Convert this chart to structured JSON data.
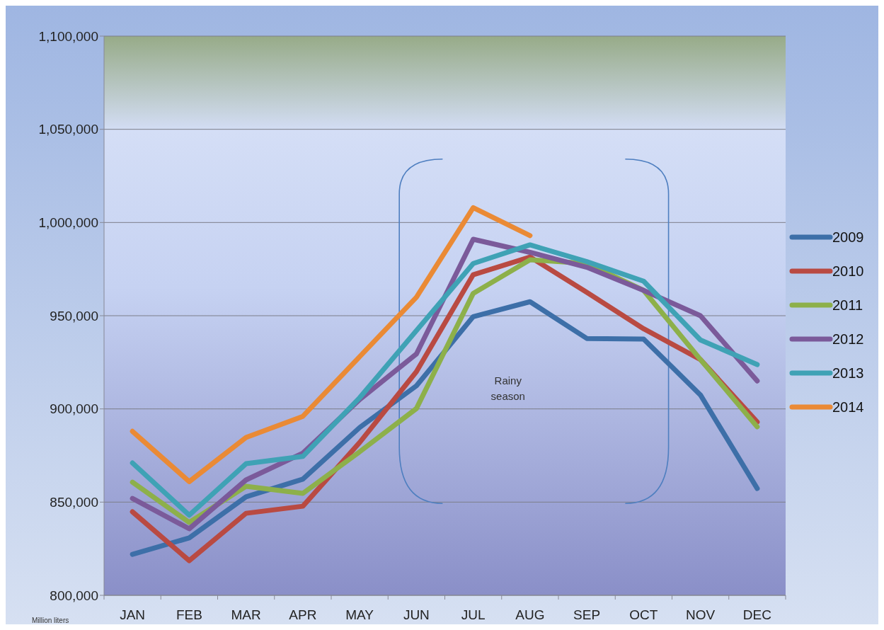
{
  "chart_data": {
    "type": "line",
    "categories": [
      "JAN",
      "FEB",
      "MAR",
      "APR",
      "MAY",
      "JUN",
      "JUL",
      "AUG",
      "SEP",
      "OCT",
      "NOV",
      "DEC"
    ],
    "series": [
      {
        "name": "2009",
        "color": "#3d6fa8",
        "values": [
          822000,
          830800,
          852800,
          862300,
          890000,
          912400,
          949500,
          957500,
          937800,
          937500,
          907500,
          857300
        ]
      },
      {
        "name": "2010",
        "color": "#b94a42",
        "values": [
          844800,
          818600,
          844000,
          847800,
          882000,
          920000,
          972000,
          981500,
          962500,
          943000,
          926500,
          893000
        ]
      },
      {
        "name": "2011",
        "color": "#8db04a",
        "values": [
          860700,
          839100,
          858500,
          854700,
          877000,
          900200,
          962000,
          980000,
          978000,
          963600,
          926500,
          890400
        ]
      },
      {
        "name": "2012",
        "color": "#7b5a9a",
        "values": [
          852000,
          835700,
          861900,
          876300,
          905000,
          929500,
          991000,
          984000,
          976000,
          963600,
          950000,
          915000
        ]
      },
      {
        "name": "2013",
        "color": "#3fa2b5",
        "values": [
          871000,
          843000,
          870600,
          874500,
          906000,
          942000,
          978000,
          988000,
          979000,
          968500,
          937000,
          923800
        ]
      },
      {
        "name": "2014",
        "color": "#ea8a35",
        "values": [
          888000,
          861000,
          884700,
          896000,
          928000,
          959900,
          1008000,
          993000,
          null,
          null,
          null,
          null
        ]
      }
    ],
    "ylim": [
      800000,
      1100000
    ],
    "yticks": [
      {
        "value": 800000,
        "label": "800,000"
      },
      {
        "value": 850000,
        "label": "850,000"
      },
      {
        "value": 900000,
        "label": "900,000"
      },
      {
        "value": 950000,
        "label": "950,000"
      },
      {
        "value": 1000000,
        "label": "1,000,000"
      },
      {
        "value": 1050000,
        "label": "1,050,000"
      },
      {
        "value": 1100000,
        "label": "1,100,000"
      }
    ],
    "grid": "y",
    "legend": "right",
    "line_style": "solid",
    "annotations": [
      "Rainy season",
      "Million liters"
    ]
  }
}
